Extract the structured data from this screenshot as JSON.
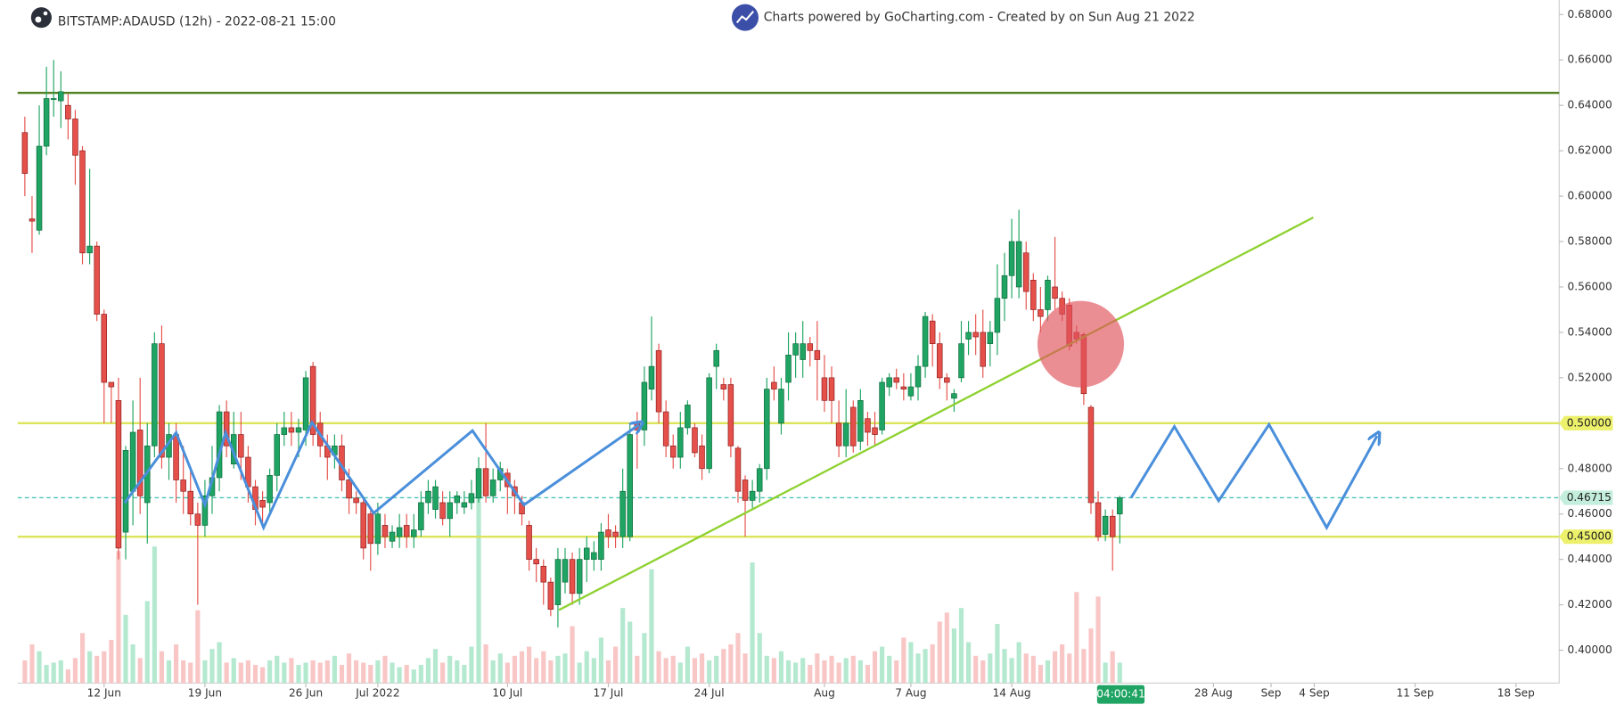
{
  "chart_data": {
    "type": "candlestick",
    "title": "BITSTAMP:ADAUSD (12h) - 2022-08-21 15:00",
    "subtitle": "Charts powered by GoCharting.com - Created by  on Sun Aug 21 2022",
    "countdown": "04:00:41",
    "x": [
      157.5,
      158,
      158.5,
      159,
      159.5,
      160,
      160.5,
      161,
      161.5,
      162,
      162.5,
      163,
      163.5,
      164,
      164.5,
      165,
      165.5,
      166,
      166.5,
      167,
      167.5,
      168,
      168.5,
      169,
      169.5,
      170,
      170.5,
      171,
      171.5,
      172,
      172.5,
      173,
      173.5,
      174,
      174.5,
      175,
      175.5,
      176,
      176.5,
      177,
      177.5,
      178,
      178.5,
      179,
      179.5,
      180,
      180.5,
      181,
      181.5,
      182,
      182.5,
      183,
      183.5,
      184,
      184.5,
      185,
      185.5,
      186,
      186.5,
      187,
      187.5,
      188,
      188.5,
      189,
      189.5,
      190,
      190.5,
      191,
      191.5,
      192,
      192.5,
      193,
      193.5,
      194,
      194.5,
      195,
      195.5,
      196,
      196.5,
      197,
      197.5,
      198,
      198.5,
      199,
      199.5,
      200,
      200.5,
      201,
      201.5,
      202,
      202.5,
      203,
      203.5,
      204,
      204.5,
      205,
      205.5,
      206,
      206.5,
      207,
      207.5,
      208,
      208.5,
      209,
      209.5,
      210,
      210.5,
      211,
      211.5,
      212,
      212.5,
      213,
      213.5,
      214,
      214.5,
      215,
      215.5,
      216,
      216.5,
      217,
      217.5,
      218,
      218.5,
      219,
      219.5,
      220,
      220.5,
      221,
      221.5,
      222,
      222.5,
      223,
      223.5,
      224,
      224.5,
      225,
      225.5,
      226,
      226.5,
      227,
      227.5,
      228,
      228.5,
      229,
      229.5,
      230,
      230.5,
      231,
      231.5,
      232,
      232.5,
      233,
      233.5
    ],
    "open": [
      0.628,
      0.59,
      0.585,
      0.622,
      0.643,
      0.642,
      0.64,
      0.634,
      0.62,
      0.575,
      0.578,
      0.548,
      0.518,
      0.51,
      0.452,
      0.47,
      0.497,
      0.465,
      0.49,
      0.535,
      0.485,
      0.495,
      0.475,
      0.47,
      0.46,
      0.455,
      0.468,
      0.476,
      0.505,
      0.482,
      0.495,
      0.485,
      0.472,
      0.466,
      0.465,
      0.477,
      0.495,
      0.498,
      0.496,
      0.497,
      0.525,
      0.5,
      0.49,
      0.486,
      0.49,
      0.475,
      0.467,
      0.465,
      0.46,
      0.447,
      0.455,
      0.448,
      0.45,
      0.455,
      0.45,
      0.453,
      0.465,
      0.462,
      0.465,
      0.458,
      0.465,
      0.463,
      0.465,
      0.467,
      0.48,
      0.468,
      0.475,
      0.478,
      0.472,
      0.465,
      0.455,
      0.44,
      0.437,
      0.43,
      0.42,
      0.43,
      0.44,
      0.425,
      0.44,
      0.44,
      0.44,
      0.453,
      0.452,
      0.45,
      0.45,
      0.5,
      0.497,
      0.515,
      0.532,
      0.505,
      0.49,
      0.485,
      0.498,
      0.498,
      0.49,
      0.48,
      0.525,
      0.517,
      0.517,
      0.489,
      0.475,
      0.466,
      0.47,
      0.48,
      0.518,
      0.5,
      0.518,
      0.53,
      0.528,
      0.535,
      0.532,
      0.52,
      0.52,
      0.5,
      0.49,
      0.507,
      0.492,
      0.502,
      0.498,
      0.497,
      0.516,
      0.52,
      0.516,
      0.512,
      0.516,
      0.525,
      0.545,
      0.535,
      0.52,
      0.511,
      0.52,
      0.537,
      0.54,
      0.54,
      0.535,
      0.54,
      0.555,
      0.565,
      0.56,
      0.575,
      0.563,
      0.55,
      0.55,
      0.56,
      0.555,
      0.552,
      0.54,
      0.539,
      0.507,
      0.465,
      0.451,
      0.459,
      0.46
    ],
    "high": [
      0.635,
      0.6,
      0.64,
      0.657,
      0.66,
      0.655,
      0.645,
      0.638,
      0.622,
      0.612,
      0.58,
      0.55,
      0.518,
      0.52,
      0.49,
      0.51,
      0.52,
      0.5,
      0.54,
      0.543,
      0.5,
      0.5,
      0.49,
      0.48,
      0.465,
      0.475,
      0.49,
      0.508,
      0.51,
      0.505,
      0.505,
      0.49,
      0.475,
      0.47,
      0.48,
      0.5,
      0.505,
      0.505,
      0.502,
      0.523,
      0.527,
      0.505,
      0.495,
      0.495,
      0.495,
      0.48,
      0.47,
      0.467,
      0.462,
      0.465,
      0.46,
      0.455,
      0.46,
      0.46,
      0.46,
      0.47,
      0.475,
      0.475,
      0.47,
      0.47,
      0.47,
      0.47,
      0.475,
      0.485,
      0.5,
      0.48,
      0.483,
      0.48,
      0.475,
      0.468,
      0.457,
      0.445,
      0.44,
      0.432,
      0.445,
      0.445,
      0.443,
      0.445,
      0.45,
      0.448,
      0.456,
      0.46,
      0.455,
      0.48,
      0.5,
      0.505,
      0.525,
      0.547,
      0.535,
      0.51,
      0.495,
      0.505,
      0.51,
      0.5,
      0.495,
      0.522,
      0.535,
      0.52,
      0.52,
      0.49,
      0.477,
      0.475,
      0.482,
      0.52,
      0.525,
      0.52,
      0.54,
      0.54,
      0.545,
      0.538,
      0.545,
      0.53,
      0.525,
      0.51,
      0.515,
      0.51,
      0.515,
      0.505,
      0.505,
      0.52,
      0.522,
      0.524,
      0.522,
      0.522,
      0.53,
      0.549,
      0.548,
      0.54,
      0.522,
      0.515,
      0.545,
      0.545,
      0.548,
      0.55,
      0.545,
      0.57,
      0.575,
      0.59,
      0.594,
      0.58,
      0.566,
      0.56,
      0.565,
      0.582,
      0.558,
      0.555,
      0.543,
      0.54,
      0.508,
      0.47,
      0.462,
      0.462,
      0.468
    ],
    "low": [
      0.6,
      0.575,
      0.583,
      0.618,
      0.635,
      0.63,
      0.625,
      0.605,
      0.57,
      0.57,
      0.545,
      0.5,
      0.5,
      0.44,
      0.44,
      0.455,
      0.46,
      0.447,
      0.485,
      0.48,
      0.475,
      0.465,
      0.46,
      0.455,
      0.42,
      0.45,
      0.46,
      0.47,
      0.485,
      0.48,
      0.475,
      0.465,
      0.455,
      0.455,
      0.46,
      0.47,
      0.49,
      0.49,
      0.485,
      0.49,
      0.49,
      0.485,
      0.475,
      0.48,
      0.47,
      0.46,
      0.46,
      0.44,
      0.435,
      0.442,
      0.445,
      0.445,
      0.445,
      0.445,
      0.445,
      0.45,
      0.46,
      0.458,
      0.455,
      0.45,
      0.46,
      0.46,
      0.462,
      0.465,
      0.465,
      0.465,
      0.47,
      0.46,
      0.46,
      0.455,
      0.435,
      0.43,
      0.42,
      0.415,
      0.41,
      0.425,
      0.42,
      0.42,
      0.43,
      0.435,
      0.435,
      0.445,
      0.445,
      0.445,
      0.448,
      0.48,
      0.49,
      0.51,
      0.5,
      0.485,
      0.48,
      0.48,
      0.495,
      0.485,
      0.475,
      0.478,
      0.515,
      0.51,
      0.485,
      0.465,
      0.45,
      0.462,
      0.465,
      0.475,
      0.51,
      0.495,
      0.51,
      0.52,
      0.52,
      0.525,
      0.51,
      0.505,
      0.5,
      0.485,
      0.485,
      0.487,
      0.488,
      0.49,
      0.49,
      0.495,
      0.512,
      0.515,
      0.51,
      0.51,
      0.51,
      0.52,
      0.525,
      0.515,
      0.51,
      0.505,
      0.518,
      0.53,
      0.53,
      0.52,
      0.525,
      0.53,
      0.545,
      0.555,
      0.555,
      0.55,
      0.545,
      0.54,
      0.545,
      0.55,
      0.545,
      0.532,
      0.535,
      0.508,
      0.46,
      0.448,
      0.448,
      0.435,
      0.447
    ],
    "close": [
      0.61,
      0.589,
      0.622,
      0.643,
      0.643,
      0.646,
      0.634,
      0.618,
      0.575,
      0.578,
      0.548,
      0.518,
      0.516,
      0.445,
      0.488,
      0.496,
      0.468,
      0.49,
      0.535,
      0.485,
      0.495,
      0.475,
      0.47,
      0.46,
      0.455,
      0.468,
      0.476,
      0.505,
      0.49,
      0.495,
      0.485,
      0.472,
      0.462,
      0.463,
      0.477,
      0.495,
      0.498,
      0.496,
      0.498,
      0.52,
      0.495,
      0.49,
      0.485,
      0.49,
      0.475,
      0.467,
      0.465,
      0.445,
      0.447,
      0.46,
      0.45,
      0.452,
      0.454,
      0.45,
      0.453,
      0.465,
      0.47,
      0.472,
      0.458,
      0.465,
      0.468,
      0.465,
      0.469,
      0.48,
      0.468,
      0.475,
      0.48,
      0.472,
      0.468,
      0.46,
      0.44,
      0.438,
      0.43,
      0.418,
      0.44,
      0.44,
      0.425,
      0.44,
      0.445,
      0.443,
      0.452,
      0.45,
      0.45,
      0.47,
      0.495,
      0.497,
      0.518,
      0.525,
      0.505,
      0.49,
      0.485,
      0.498,
      0.508,
      0.487,
      0.48,
      0.52,
      0.532,
      0.515,
      0.49,
      0.47,
      0.466,
      0.47,
      0.48,
      0.515,
      0.515,
      0.515,
      0.53,
      0.535,
      0.535,
      0.532,
      0.528,
      0.51,
      0.51,
      0.49,
      0.5,
      0.49,
      0.51,
      0.496,
      0.495,
      0.518,
      0.52,
      0.518,
      0.515,
      0.516,
      0.525,
      0.547,
      0.535,
      0.52,
      0.518,
      0.513,
      0.535,
      0.54,
      0.538,
      0.525,
      0.54,
      0.555,
      0.565,
      0.58,
      0.58,
      0.558,
      0.55,
      0.547,
      0.563,
      0.555,
      0.548,
      0.534,
      0.537,
      0.513,
      0.465,
      0.45,
      0.459,
      0.45,
      0.46715
    ],
    "volume": [
      10,
      17,
      14,
      8,
      9,
      10,
      6,
      11,
      22,
      14,
      12,
      14,
      19,
      58,
      30,
      17,
      11,
      36,
      60,
      14,
      10,
      17,
      10,
      9,
      32,
      10,
      15,
      18,
      9,
      11,
      9,
      10,
      8,
      7,
      10,
      12,
      9,
      11,
      8,
      9,
      10,
      9,
      10,
      12,
      8,
      13,
      10,
      9,
      8,
      10,
      12,
      9,
      7,
      8,
      6,
      8,
      11,
      15,
      9,
      12,
      10,
      8,
      16,
      87,
      17,
      10,
      13,
      9,
      12,
      14,
      16,
      11,
      14,
      10,
      12,
      13,
      25,
      9,
      14,
      11,
      20,
      10,
      16,
      33,
      27,
      12,
      22,
      50,
      14,
      11,
      12,
      9,
      16,
      11,
      13,
      10,
      12,
      15,
      17,
      22,
      13,
      53,
      22,
      12,
      11,
      14,
      10,
      9,
      11,
      8,
      13,
      10,
      12,
      9,
      11,
      12,
      10,
      8,
      14,
      16,
      12,
      10,
      20,
      18,
      13,
      15,
      17,
      27,
      31,
      24,
      33,
      18,
      12,
      10,
      13,
      26,
      15,
      11,
      18,
      13,
      12,
      8,
      10,
      14,
      17,
      13,
      40,
      15,
      24,
      38,
      9,
      14,
      9
    ],
    "up_color": "#1fa463",
    "down_color": "#e5504a",
    "up_volume_color": "#b4e9d0",
    "down_volume_color": "#f9c6c6",
    "xlim": [
      157,
      264
    ],
    "xticks": [
      {
        "value": 163,
        "label": "12 Jun"
      },
      {
        "value": 170,
        "label": "19 Jun"
      },
      {
        "value": 177,
        "label": "26 Jun"
      },
      {
        "value": 182,
        "label": "Jul 2022"
      },
      {
        "value": 191,
        "label": "10 Jul"
      },
      {
        "value": 198,
        "label": "17 Jul"
      },
      {
        "value": 205,
        "label": "24 Jul"
      },
      {
        "value": 213,
        "label": "Aug"
      },
      {
        "value": 219,
        "label": "7 Aug"
      },
      {
        "value": 226,
        "label": "14 Aug"
      },
      {
        "value": 240,
        "label": "28 Aug"
      },
      {
        "value": 244,
        "label": "Sep"
      },
      {
        "value": 247,
        "label": "4 Sep"
      },
      {
        "value": 254,
        "label": "11 Sep"
      },
      {
        "value": 261,
        "label": "18 Sep"
      }
    ],
    "ylim": [
      0.3855,
      0.6864
    ],
    "yticks": [
      {
        "value": 0.4,
        "label": "0.40000"
      },
      {
        "value": 0.42,
        "label": "0.42000"
      },
      {
        "value": 0.44,
        "label": "0.44000"
      },
      {
        "value": 0.46,
        "label": "0.46000"
      },
      {
        "value": 0.48,
        "label": "0.48000"
      },
      {
        "value": 0.5,
        "label": "0.50000"
      },
      {
        "value": 0.52,
        "label": "0.52000"
      },
      {
        "value": 0.54,
        "label": "0.54000"
      },
      {
        "value": 0.56,
        "label": "0.56000"
      },
      {
        "value": 0.58,
        "label": "0.58000"
      },
      {
        "value": 0.6,
        "label": "0.60000"
      },
      {
        "value": 0.62,
        "label": "0.62000"
      },
      {
        "value": 0.64,
        "label": "0.64000"
      },
      {
        "value": 0.66,
        "label": "0.66000"
      },
      {
        "value": 0.68,
        "label": "0.68000"
      }
    ],
    "y2lim": [
      0,
      300
    ],
    "grid": false,
    "horizontal_lines": [
      {
        "value": 0.6455,
        "color": "#4f7f1f",
        "style": "solid"
      },
      {
        "value": 0.5,
        "label": "0.50000",
        "color": "#dbe45a",
        "style": "solid"
      },
      {
        "value": 0.45,
        "label": "0.45000",
        "color": "#dbe45a",
        "style": "solid"
      },
      {
        "value": 0.46715,
        "label": "0.46715",
        "color": "#4cc4b4",
        "style": "dashed"
      }
    ],
    "trendline": {
      "x": [
        194.57,
        246.93
      ],
      "y": [
        0.4177,
        0.5906
      ],
      "color": "#8ed12f"
    },
    "highlight": {
      "x": 230.79,
      "y": 0.5348,
      "color": "#e0525a"
    },
    "zigzags": [
      {
        "x": [
          164.43,
          168.0,
          170.0,
          171.43,
          174.07,
          177.43,
          181.71,
          188.57,
          192.14,
          200.14
        ],
        "y": [
          0.4649,
          0.4958,
          0.464,
          0.4958,
          0.454,
          0.5003,
          0.4604,
          0.4967,
          0.464,
          0.4994
        ],
        "color": "#4a8fdb"
      },
      {
        "x": [
          234.29,
          237.29,
          240.36,
          243.86,
          247.86,
          251.36
        ],
        "y": [
          0.4672,
          0.4985,
          0.4658,
          0.4994,
          0.454,
          0.4944
        ],
        "color": "#4a8fdb"
      }
    ]
  }
}
